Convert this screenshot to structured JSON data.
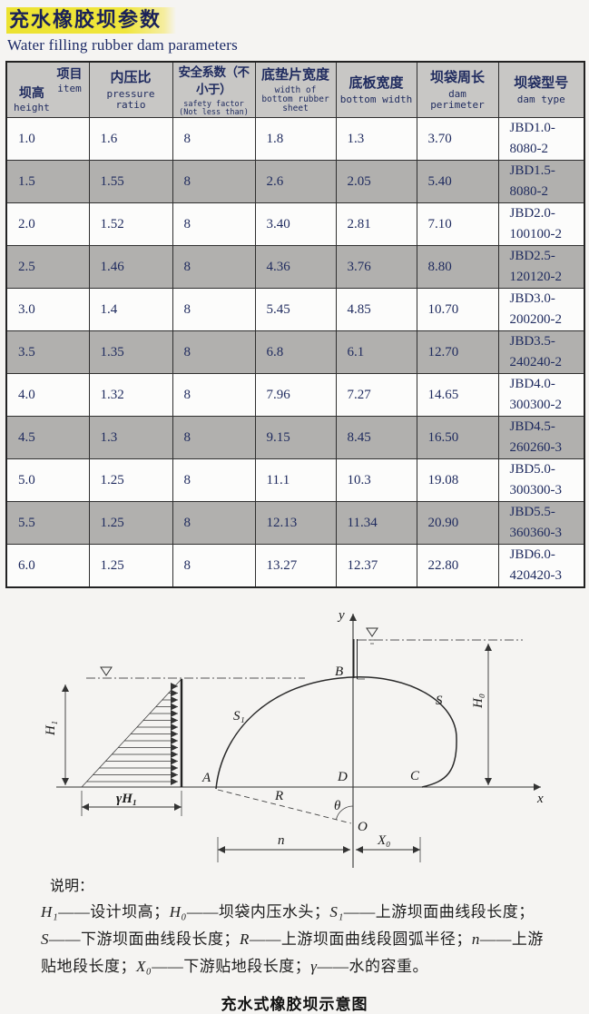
{
  "header": {
    "title_zh": "充水橡胶坝参数",
    "title_en": "Water filling rubber dam parameters"
  },
  "colors": {
    "title_highlight": "#f0e63c",
    "text_navy": "#1e2a5e",
    "row_gray": "#b1b0ae",
    "header_gray": "#c8c7c5"
  },
  "table": {
    "corner": {
      "top_zh": "项目",
      "top_en": "item",
      "bottom_zh": "坝高",
      "bottom_en": "height"
    },
    "headers": [
      {
        "zh": "内压比",
        "en": "pressure ratio"
      },
      {
        "zh": "安全系数（不小于）",
        "en": "safety factor (Not less than)"
      },
      {
        "zh": "底垫片宽度",
        "en": "width of bottom rubber sheet"
      },
      {
        "zh": "底板宽度",
        "en": "bottom width"
      },
      {
        "zh": "坝袋周长",
        "en": "dam perimeter"
      },
      {
        "zh": "坝袋型号",
        "en": "dam type"
      }
    ],
    "rows": [
      [
        "1.0",
        "1.6",
        "8",
        "1.8",
        "1.3",
        "3.70",
        "JBD1.0-8080-2"
      ],
      [
        "1.5",
        "1.55",
        "8",
        "2.6",
        "2.05",
        "5.40",
        "JBD1.5-8080-2"
      ],
      [
        "2.0",
        "1.52",
        "8",
        "3.40",
        "2.81",
        "7.10",
        "JBD2.0-100100-2"
      ],
      [
        "2.5",
        "1.46",
        "8",
        "4.36",
        "3.76",
        "8.80",
        "JBD2.5-120120-2"
      ],
      [
        "3.0",
        "1.4",
        "8",
        "5.45",
        "4.85",
        "10.70",
        "JBD3.0-200200-2"
      ],
      [
        "3.5",
        "1.35",
        "8",
        "6.8",
        "6.1",
        "12.70",
        "JBD3.5-240240-2"
      ],
      [
        "4.0",
        "1.32",
        "8",
        "7.96",
        "7.27",
        "14.65",
        "JBD4.0-300300-2"
      ],
      [
        "4.5",
        "1.3",
        "8",
        "9.15",
        "8.45",
        "16.50",
        "JBD4.5-260260-3"
      ],
      [
        "5.0",
        "1.25",
        "8",
        "11.1",
        "10.3",
        "19.08",
        "JBD5.0-300300-3"
      ],
      [
        "5.5",
        "1.25",
        "8",
        "12.13",
        "11.34",
        "20.90",
        "JBD5.5-360360-3"
      ],
      [
        "6.0",
        "1.25",
        "8",
        "13.27",
        "12.37",
        "22.80",
        "JBD6.0-420420-3"
      ]
    ]
  },
  "diagram": {
    "labels": {
      "y_axis": "y",
      "x_axis": "x",
      "A": "A",
      "B": "B",
      "C": "C",
      "D": "D",
      "O": "O",
      "S1": "S₁",
      "S": "S",
      "R": "R",
      "theta": "θ",
      "n": "n",
      "X0": "X₀",
      "H0": "H₀",
      "H1": "H₁",
      "gammaH1": "γH₁"
    }
  },
  "notes": {
    "heading": "说明：",
    "lines": [
      "H₁——设计坝高；H₀——坝袋内压水头；S₁——上游坝面曲线段长度；",
      "S——下游坝面曲线段长度；R——上游坝面曲线段圆弧半径；n——上游",
      "贴地段长度；X₀——下游贴地段长度；γ——水的容重。"
    ]
  },
  "caption": "充水式橡胶坝示意图"
}
